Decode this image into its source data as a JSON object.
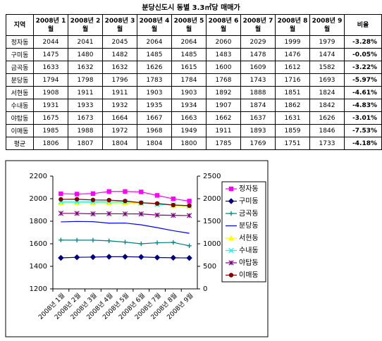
{
  "table": {
    "title": "분당신도시 동별 3.3㎡당 매매가",
    "header": [
      "지역",
      "2008년 1월",
      "2008년 2월",
      "2008년 3월",
      "2008년 4월",
      "2008년 5월",
      "2008년 6월",
      "2008년 7월",
      "2008년 8월",
      "2008년 9월",
      "비율"
    ],
    "rows": [
      [
        "정자동",
        2044,
        2041,
        2045,
        2064,
        2064,
        2060,
        2029,
        1999,
        1979,
        "-3.28%"
      ],
      [
        "구미동",
        1475,
        1480,
        1482,
        1485,
        1485,
        1483,
        1478,
        1476,
        1474,
        "-0.05%"
      ],
      [
        "금곡동",
        1633,
        1632,
        1632,
        1626,
        1615,
        1600,
        1609,
        1612,
        1582,
        "-3.22%"
      ],
      [
        "분당동",
        1794,
        1798,
        1796,
        1783,
        1784,
        1768,
        1743,
        1716,
        1693,
        "-5.97%"
      ],
      [
        "서현동",
        1908,
        1911,
        1911,
        1903,
        1903,
        1892,
        1888,
        1851,
        1824,
        "-4.61%"
      ],
      [
        "수내동",
        1931,
        1933,
        1932,
        1935,
        1934,
        1907,
        1874,
        1862,
        1842,
        "-4.83%"
      ],
      [
        "야탑동",
        1675,
        1673,
        1664,
        1667,
        1663,
        1662,
        1637,
        1631,
        1626,
        "-3.01%"
      ],
      [
        "이매동",
        1985,
        1988,
        1972,
        1968,
        1949,
        1911,
        1893,
        1859,
        1846,
        "-7.53%"
      ],
      [
        "평균",
        1806,
        1807,
        1804,
        1804,
        1800,
        1785,
        1769,
        1751,
        1733,
        "-4.18%"
      ]
    ]
  },
  "chart_data": {
    "type": "line",
    "categories": [
      "2008년 1월",
      "2008년 2월",
      "2008년 3월",
      "2008년 4월",
      "2008년 5월",
      "2008년 6월",
      "2008년 7월",
      "2008년 8월",
      "2008년 9월"
    ],
    "ylim": [
      1200,
      2200
    ],
    "yticks": [
      1200,
      1400,
      1600,
      1800,
      2000,
      2200
    ],
    "y2lim": [
      0,
      2500
    ],
    "y2ticks": [
      0,
      500,
      1000,
      1500,
      2000,
      2500
    ],
    "grid": false,
    "legend": "right",
    "series": [
      {
        "name": "정자동",
        "color": "#ff00ff",
        "marker": "square",
        "values": [
          2044,
          2041,
          2045,
          2064,
          2064,
          2060,
          2029,
          1999,
          1979
        ]
      },
      {
        "name": "구미동",
        "color": "#000080",
        "marker": "diamond",
        "values": [
          1475,
          1480,
          1482,
          1485,
          1485,
          1483,
          1478,
          1476,
          1474
        ]
      },
      {
        "name": "금곡동",
        "color": "#008080",
        "marker": "plus",
        "values": [
          1633,
          1632,
          1632,
          1626,
          1615,
          1600,
          1609,
          1612,
          1582
        ]
      },
      {
        "name": "분당동",
        "color": "#0000ff",
        "marker": "none",
        "values": [
          1794,
          1798,
          1796,
          1783,
          1784,
          1768,
          1743,
          1716,
          1693
        ]
      },
      {
        "name": "서현동",
        "color": "#ffff00",
        "marker": "triangle",
        "axis": "y2",
        "values": [
          1908,
          1911,
          1911,
          1903,
          1903,
          1892,
          1888,
          1851,
          1824
        ]
      },
      {
        "name": "수내동",
        "color": "#00ffff",
        "marker": "x",
        "axis": "y2",
        "values": [
          1931,
          1933,
          1932,
          1935,
          1934,
          1907,
          1874,
          1862,
          1842
        ]
      },
      {
        "name": "야탑동",
        "color": "#800080",
        "marker": "star",
        "axis": "y2",
        "values": [
          1675,
          1673,
          1664,
          1667,
          1663,
          1662,
          1637,
          1631,
          1626
        ]
      },
      {
        "name": "이매동",
        "color": "#800000",
        "marker": "circle",
        "axis": "y2",
        "values": [
          1985,
          1988,
          1972,
          1968,
          1949,
          1911,
          1893,
          1859,
          1846
        ]
      }
    ]
  }
}
